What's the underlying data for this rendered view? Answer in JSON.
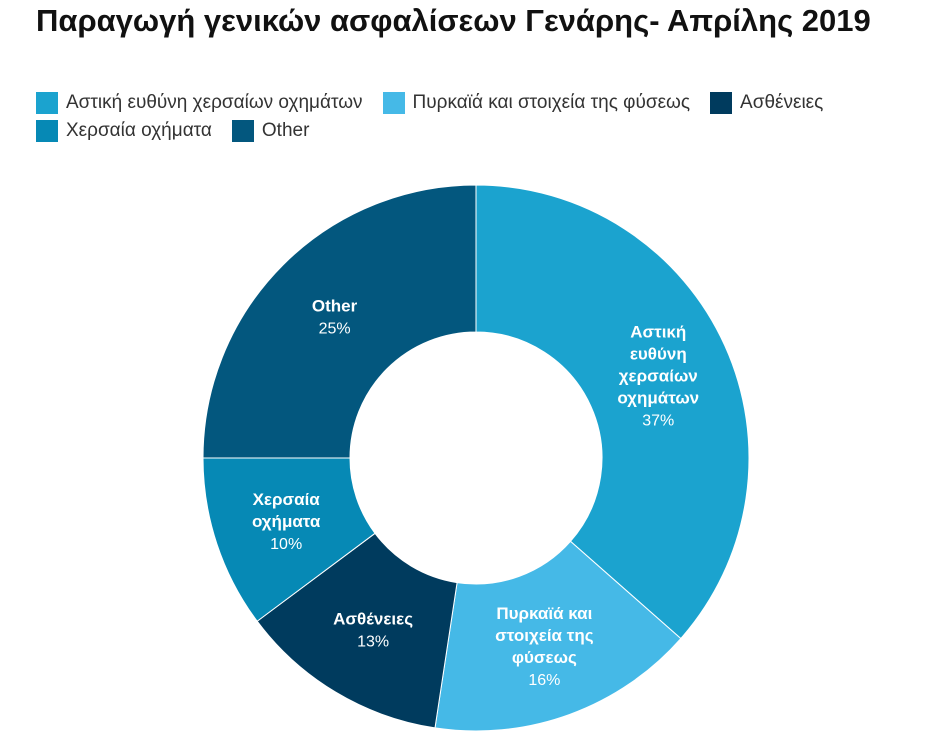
{
  "chart_data": {
    "type": "pie",
    "donut": true,
    "title": "Παραγωγή γενικών ασφαλίσεων Γενάρης- Απρίλης 2019",
    "legend_placement": "top-left",
    "slices": [
      {
        "name": "Αστική ευθύνη χερσαίων οχημάτων",
        "label_lines": [
          "Αστική",
          "ευθύνη",
          "χερσαίων",
          "οχημάτων"
        ],
        "value": 36.5,
        "pct_label": "37%",
        "color": "#1ba3cf"
      },
      {
        "name": "Πυρκαϊά και στοιχεία της φύσεως",
        "label_lines": [
          "Πυρκαϊά και",
          "στοιχεία της",
          "φύσεως"
        ],
        "value": 15.9,
        "pct_label": "16%",
        "color": "#45b9e7"
      },
      {
        "name": "Ασθένειες",
        "label_lines": [
          "Ασθένειες"
        ],
        "value": 12.4,
        "pct_label": "13%",
        "color": "#003b5e"
      },
      {
        "name": "Χερσαία οχήματα",
        "label_lines": [
          "Χερσαία",
          "οχήματα"
        ],
        "value": 10.2,
        "pct_label": "10%",
        "color": "#0689b5"
      },
      {
        "name": "Other",
        "label_lines": [
          "Other"
        ],
        "value": 25.0,
        "pct_label": "25%",
        "color": "#03577e"
      }
    ]
  }
}
